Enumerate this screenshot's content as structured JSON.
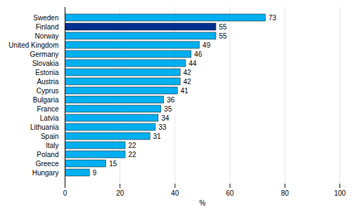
{
  "chart_data": {
    "type": "bar",
    "orientation": "horizontal",
    "categories": [
      "Sweden",
      "Finland",
      "Norway",
      "United Kingdom",
      "Germany",
      "Slovakia",
      "Estonia",
      "Austria",
      "Cyprus",
      "Bulgaria",
      "France",
      "Latvia",
      "Lithuania",
      "Spain",
      "Italy",
      "Poland",
      "Greece",
      "Hungary"
    ],
    "values": [
      73,
      55,
      55,
      49,
      46,
      44,
      42,
      42,
      41,
      36,
      35,
      34,
      33,
      31,
      22,
      22,
      15,
      9
    ],
    "colors": [
      "#00b0f0",
      "#00308f",
      "#00b0f0",
      "#00b0f0",
      "#00b0f0",
      "#00b0f0",
      "#00b0f0",
      "#00b0f0",
      "#00b0f0",
      "#00b0f0",
      "#00b0f0",
      "#00b0f0",
      "#00b0f0",
      "#00b0f0",
      "#00b0f0",
      "#00b0f0",
      "#00b0f0",
      "#00b0f0"
    ],
    "xlim": [
      0,
      100
    ],
    "xticks": [
      0,
      20,
      40,
      60,
      80,
      100
    ],
    "xlabel": "%",
    "grid": true,
    "data_labels": true
  }
}
